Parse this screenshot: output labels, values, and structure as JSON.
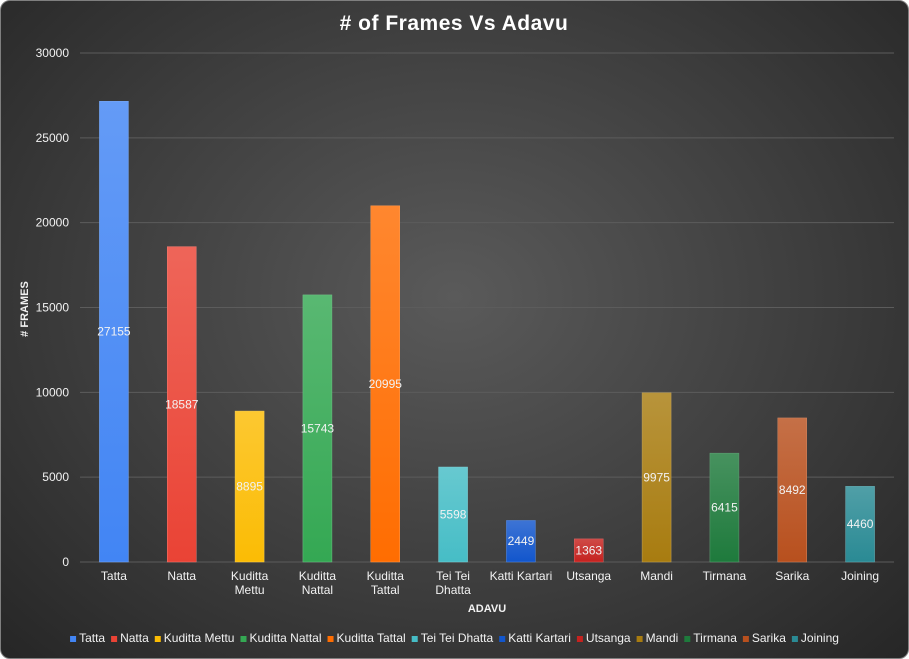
{
  "chart_data": {
    "type": "bar",
    "title": "# of Frames Vs Adavu",
    "xlabel": "ADAVU",
    "ylabel": "# FRAMES",
    "ylim": [
      0,
      30000
    ],
    "yticks": [
      0,
      5000,
      10000,
      15000,
      20000,
      25000,
      30000
    ],
    "grid": true,
    "legend_position": "bottom",
    "categories": [
      "Tatta",
      "Natta",
      "Kuditta Mettu",
      "Kuditta Nattal",
      "Kuditta Tattal",
      "Tei Tei Dhatta",
      "Katti Kartari",
      "Utsanga",
      "Mandi",
      "Tirmana",
      "Sarika",
      "Joining"
    ],
    "category_tick_lines": [
      [
        "Tatta"
      ],
      [
        "Natta"
      ],
      [
        "Kuditta",
        "Mettu"
      ],
      [
        "Kuditta",
        "Nattal"
      ],
      [
        "Kuditta",
        "Tattal"
      ],
      [
        "Tei Tei",
        "Dhatta"
      ],
      [
        "Katti Kartari"
      ],
      [
        "Utsanga"
      ],
      [
        "Mandi"
      ],
      [
        "Tirmana"
      ],
      [
        "Sarika"
      ],
      [
        "Joining"
      ]
    ],
    "values": [
      27155,
      18587,
      8895,
      15743,
      20995,
      5598,
      2449,
      1363,
      9975,
      6415,
      8492,
      4460
    ],
    "data_labels": [
      "27155",
      "18587",
      "8895",
      "15743",
      "20995",
      "5598",
      "2449",
      "1363",
      "9975",
      "6415",
      "8492",
      "4460"
    ],
    "colors": [
      "#4285f4",
      "#ea4335",
      "#fbbc04",
      "#34a853",
      "#ff6d01",
      "#46bdc6",
      "#1256cc",
      "#c5221f",
      "#a87c10",
      "#1e7a3c",
      "#b8501e",
      "#2a8a94"
    ]
  }
}
